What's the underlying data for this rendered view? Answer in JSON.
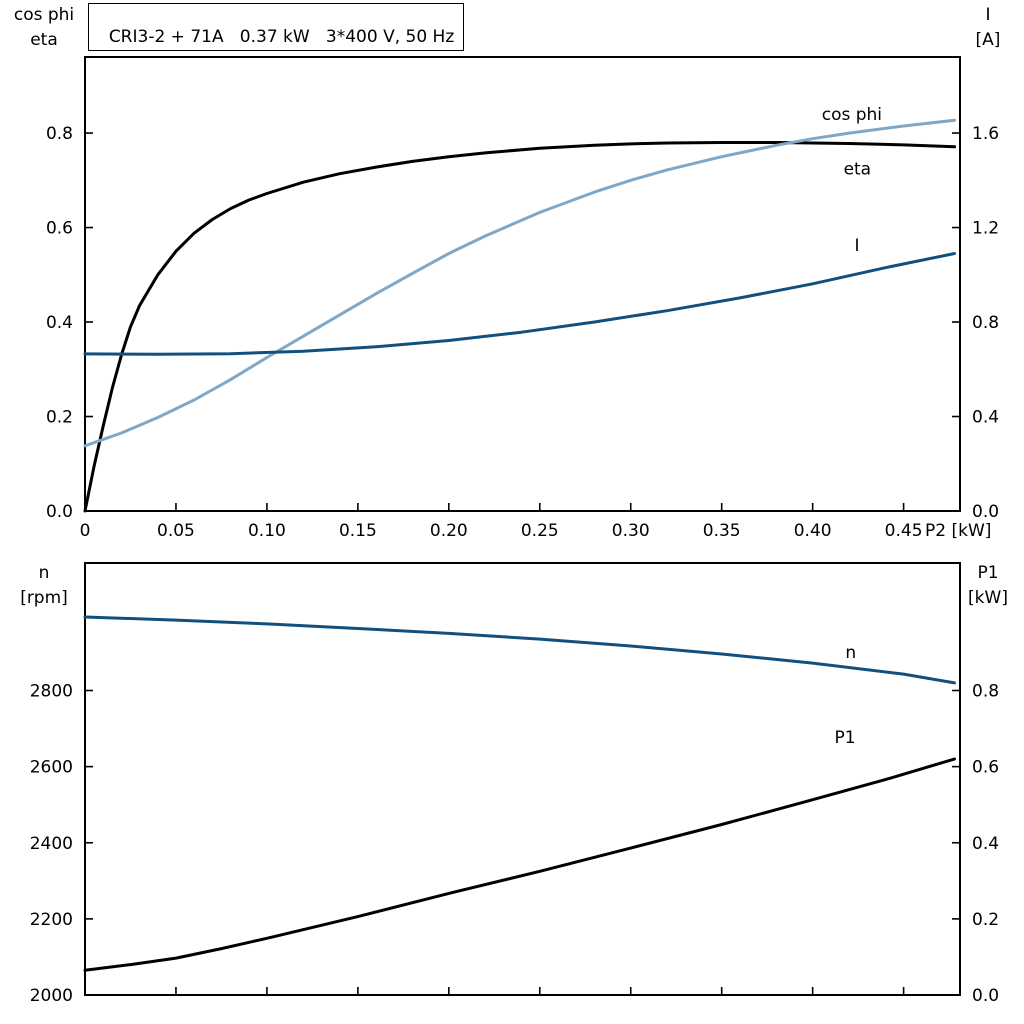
{
  "title_box": {
    "text": "CRI3-2 + 71A   0.37 kW   3*400 V, 50 Hz"
  },
  "colors": {
    "frame": "#000000",
    "text": "#000000",
    "curve_black": "#000000",
    "curve_light_blue": "#7fa7c7",
    "curve_dark_blue": "#11507e"
  },
  "chart_data": [
    {
      "id": "top-chart",
      "type": "line",
      "title": "CRI3-2 + 71A   0.37 kW   3*400 V, 50 Hz",
      "xlabel": "P2 [kW]",
      "left_axis_label_lines": [
        "cos phi",
        "eta"
      ],
      "right_axis_label_lines": [
        "I",
        "[A]"
      ],
      "grid": false,
      "xlim": [
        0,
        0.481
      ],
      "ylim_left": [
        0,
        0.961
      ],
      "ylim_right": [
        0,
        1.922
      ],
      "xticks": [
        0,
        0.05,
        0.1,
        0.15,
        0.2,
        0.25,
        0.3,
        0.35,
        0.4,
        0.45
      ],
      "xtick_labels": [
        "0",
        "0.05",
        "0.10",
        "0.15",
        "0.20",
        "0.25",
        "0.30",
        "0.35",
        "0.40",
        "0.45"
      ],
      "yticks_left": [
        0,
        0.2,
        0.4,
        0.6,
        0.8
      ],
      "ytick_labels_left": [
        "0.0",
        "0.2",
        "0.4",
        "0.6",
        "0.8"
      ],
      "yticks_right": [
        0,
        0.4,
        0.8,
        1.2,
        1.6
      ],
      "ytick_labels_right": [
        "0.0",
        "0.4",
        "0.8",
        "1.2",
        "1.6"
      ],
      "series": [
        {
          "name": "eta",
          "label": "eta",
          "axis": "left",
          "color": "#000000",
          "label_at": [
            0.417,
            0.712
          ],
          "x": [
            0,
            0.005,
            0.01,
            0.015,
            0.02,
            0.025,
            0.03,
            0.04,
            0.05,
            0.06,
            0.07,
            0.08,
            0.09,
            0.1,
            0.12,
            0.14,
            0.16,
            0.18,
            0.2,
            0.22,
            0.25,
            0.28,
            0.3,
            0.32,
            0.35,
            0.38,
            0.4,
            0.42,
            0.45,
            0.478
          ],
          "y": [
            0,
            0.095,
            0.18,
            0.26,
            0.33,
            0.39,
            0.435,
            0.5,
            0.55,
            0.588,
            0.617,
            0.64,
            0.658,
            0.672,
            0.696,
            0.714,
            0.728,
            0.74,
            0.75,
            0.758,
            0.768,
            0.774,
            0.777,
            0.779,
            0.78,
            0.78,
            0.779,
            0.778,
            0.775,
            0.771
          ]
        },
        {
          "name": "cos-phi",
          "label": "cos phi",
          "axis": "left",
          "color": "#7fa7c7",
          "label_at": [
            0.405,
            0.828
          ],
          "x": [
            0,
            0.02,
            0.04,
            0.06,
            0.08,
            0.1,
            0.12,
            0.14,
            0.16,
            0.18,
            0.2,
            0.22,
            0.25,
            0.28,
            0.3,
            0.32,
            0.35,
            0.38,
            0.4,
            0.42,
            0.45,
            0.478
          ],
          "y": [
            0.138,
            0.165,
            0.198,
            0.235,
            0.278,
            0.325,
            0.37,
            0.415,
            0.46,
            0.503,
            0.545,
            0.582,
            0.632,
            0.675,
            0.7,
            0.722,
            0.75,
            0.774,
            0.788,
            0.8,
            0.815,
            0.827
          ]
        },
        {
          "name": "current",
          "label": "I",
          "axis": "right",
          "color": "#11507e",
          "label_at": [
            0.423,
            1.1
          ],
          "x": [
            0,
            0.04,
            0.08,
            0.12,
            0.16,
            0.2,
            0.24,
            0.28,
            0.32,
            0.36,
            0.4,
            0.44,
            0.478
          ],
          "y": [
            0.665,
            0.664,
            0.666,
            0.676,
            0.695,
            0.722,
            0.757,
            0.8,
            0.848,
            0.902,
            0.962,
            1.03,
            1.09
          ]
        }
      ]
    },
    {
      "id": "bottom-chart",
      "type": "line",
      "title": "",
      "xlabel": "",
      "left_axis_label_lines": [
        "n",
        "[rpm]"
      ],
      "right_axis_label_lines": [
        "P1",
        "[kW]"
      ],
      "grid": false,
      "xlim": [
        0,
        0.481
      ],
      "ylim_left": [
        2000,
        3135
      ],
      "ylim_right": [
        0,
        1.135
      ],
      "xticks": [
        0,
        0.05,
        0.1,
        0.15,
        0.2,
        0.25,
        0.3,
        0.35,
        0.4,
        0.45
      ],
      "xtick_labels": [
        "",
        "",
        "",
        "",
        "",
        "",
        "",
        "",
        "",
        ""
      ],
      "yticks_left": [
        2000,
        2200,
        2400,
        2600,
        2800
      ],
      "ytick_labels_left": [
        "2000",
        "2200",
        "2400",
        "2600",
        "2800"
      ],
      "yticks_right": [
        0,
        0.2,
        0.4,
        0.6,
        0.8
      ],
      "ytick_labels_right": [
        "0.0",
        "0.2",
        "0.4",
        "0.6",
        "0.8"
      ],
      "series": [
        {
          "name": "speed",
          "label": "n",
          "axis": "left",
          "color": "#11507e",
          "label_at": [
            0.418,
            2885
          ],
          "x": [
            0,
            0.05,
            0.1,
            0.15,
            0.2,
            0.25,
            0.3,
            0.35,
            0.4,
            0.45,
            0.478
          ],
          "y": [
            2993,
            2985,
            2975,
            2963,
            2950,
            2935,
            2917,
            2896,
            2872,
            2843,
            2820
          ]
        },
        {
          "name": "power-p1",
          "label": "P1",
          "axis": "right",
          "color": "#000000",
          "label_at": [
            0.412,
            0.662
          ],
          "x": [
            0,
            0.025,
            0.05,
            0.075,
            0.1,
            0.15,
            0.2,
            0.25,
            0.3,
            0.35,
            0.4,
            0.44,
            0.478
          ],
          "y": [
            0.065,
            0.08,
            0.097,
            0.122,
            0.149,
            0.206,
            0.267,
            0.325,
            0.386,
            0.448,
            0.513,
            0.566,
            0.62
          ]
        }
      ]
    }
  ]
}
